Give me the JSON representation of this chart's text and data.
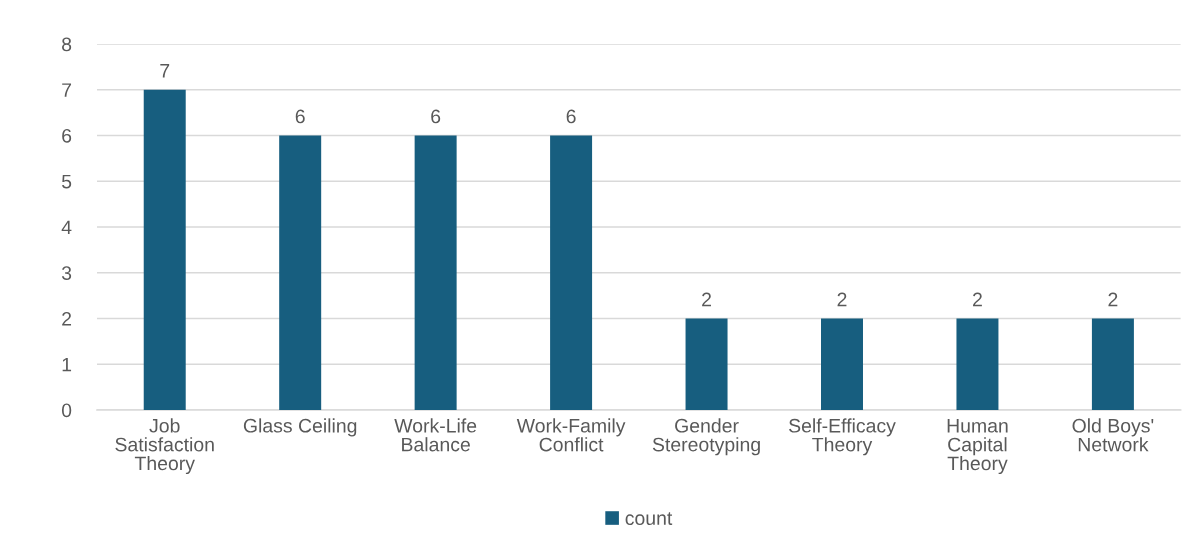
{
  "chart_data": {
    "type": "bar",
    "categories": [
      "Job\nSatisfaction\nTheory",
      "Glass Ceiling",
      "Work-Life\nBalance",
      "Work-Family\nConflict",
      "Gender\nStereotyping",
      "Self-Efficacy\nTheory",
      "Human\nCapital\nTheory",
      "Old Boys'\nNetwork"
    ],
    "series": [
      {
        "name": "count",
        "color": "#175e7f",
        "values": [
          7,
          6,
          6,
          6,
          2,
          2,
          2,
          2
        ]
      }
    ],
    "ylim": [
      0,
      8
    ],
    "yticks": [
      0,
      1,
      2,
      3,
      4,
      5,
      6,
      7,
      8
    ],
    "grid": "y",
    "legend": "bottom",
    "data_labels": true
  }
}
